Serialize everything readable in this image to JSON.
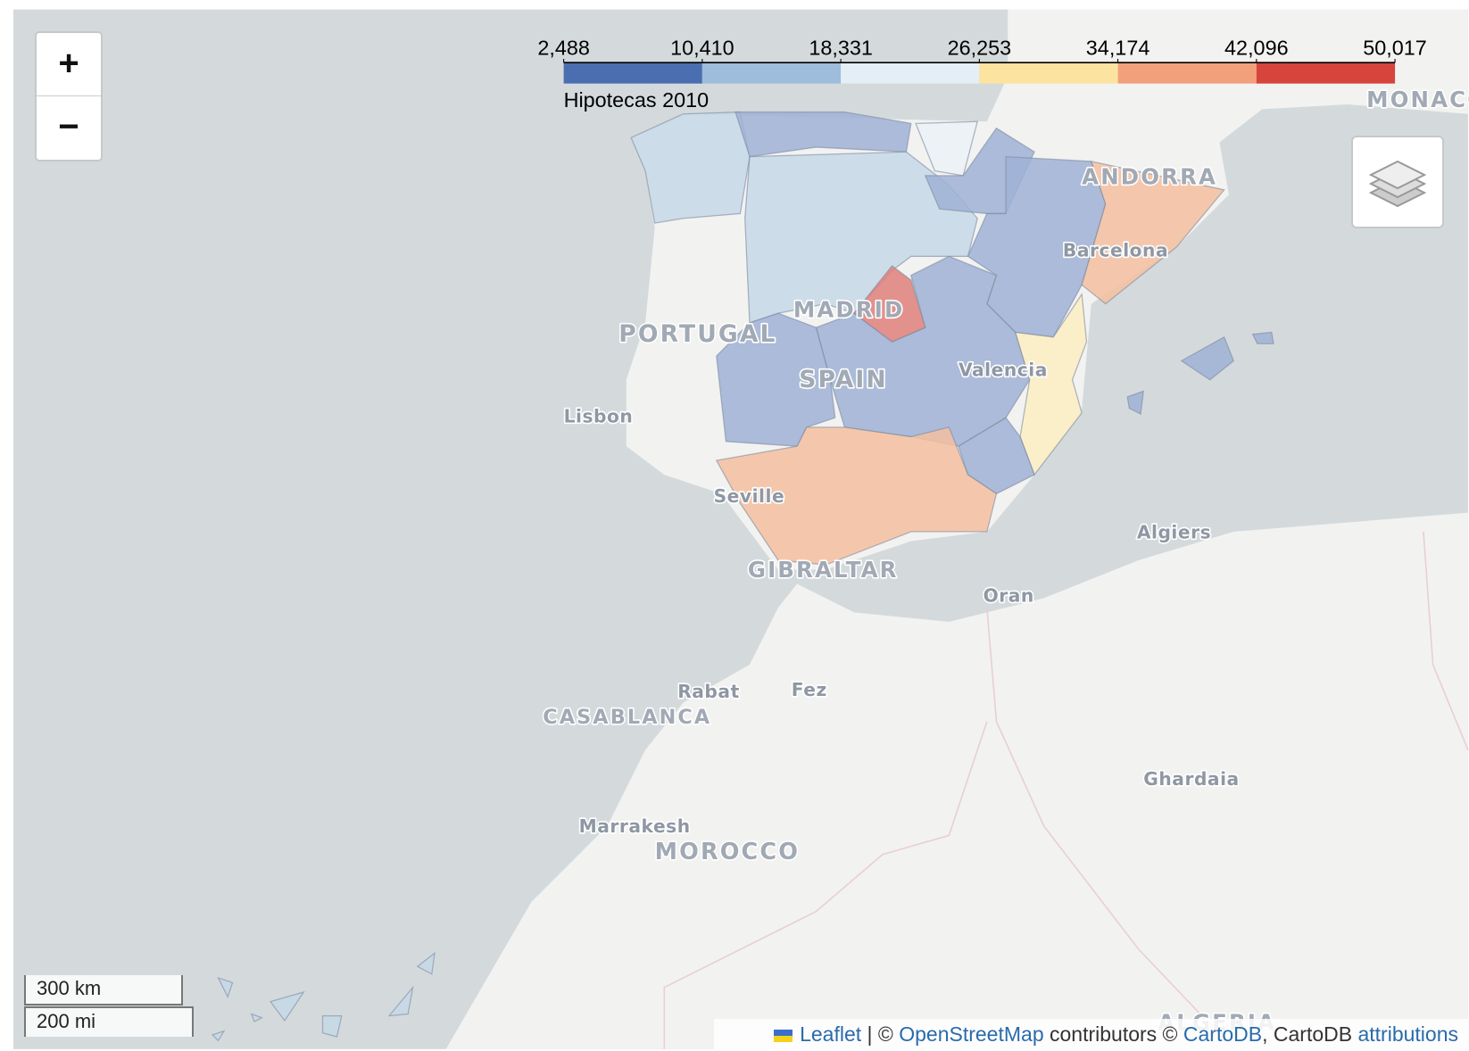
{
  "zoom": {
    "in": "+",
    "out": "−"
  },
  "legend": {
    "title": "Hipotecas 2010",
    "range": [
      2488,
      50017
    ],
    "ticks": [
      {
        "value": 2488,
        "label": "2,488"
      },
      {
        "value": 10410,
        "label": "10,410"
      },
      {
        "value": 18331,
        "label": "18,331"
      },
      {
        "value": 26253,
        "label": "26,253"
      },
      {
        "value": 34174,
        "label": "34,174"
      },
      {
        "value": 42096,
        "label": "42,096"
      },
      {
        "value": 50017,
        "label": "50,017"
      }
    ],
    "colors": [
      "#4a6eb0",
      "#9ebcdb",
      "#e3eef6",
      "#fce3a0",
      "#f2a07c",
      "#d6443c"
    ]
  },
  "places": {
    "monaco": "MONACO",
    "andorra": "ANDORRA",
    "barcelona": "Barcelona",
    "madrid": "MADRID",
    "portugal": "PORTUGAL",
    "spain": "SPAIN",
    "valencia": "Valencia",
    "lisbon": "Lisbon",
    "seville": "Seville",
    "algiers": "Algiers",
    "gibraltar": "GIBRALTAR",
    "oran": "Oran",
    "rabat": "Rabat",
    "fez": "Fez",
    "casablanca": "CASABLANCA",
    "ghardaia": "Ghardaia",
    "marrakesh": "Marrakesh",
    "morocco": "MOROCCO",
    "algeria": "ALGERIA"
  },
  "scale": {
    "metric": "300 km",
    "imperial": "200 mi"
  },
  "attribution": {
    "leaflet": "Leaflet",
    "sep1": " | © ",
    "osm": "OpenStreetMap",
    "sep2": " contributors © ",
    "carto": "CartoDB",
    "sep3": ", CartoDB ",
    "attributions": "attributions"
  }
}
